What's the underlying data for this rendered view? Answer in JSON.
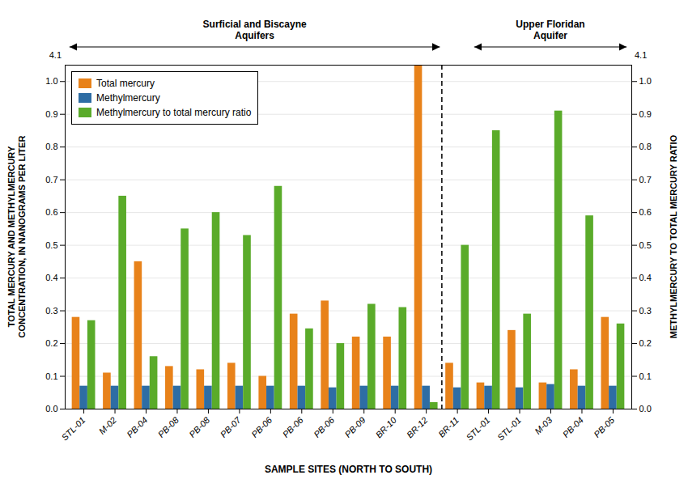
{
  "chart_data": {
    "type": "bar",
    "categories": [
      "STL-01",
      "M-02",
      "PB-04",
      "PB-08",
      "PB-08",
      "PB-07",
      "PB-06",
      "PB-06",
      "PB-06",
      "PB-09",
      "BR-10",
      "BR-12",
      "BR-11",
      "STL-01",
      "STL-01",
      "M-03",
      "PB-04",
      "PB-05"
    ],
    "series": [
      {
        "name": "Total mercury",
        "color": "#E8821A",
        "values": [
          0.28,
          0.11,
          0.45,
          0.13,
          0.12,
          0.14,
          0.1,
          0.29,
          0.33,
          0.22,
          0.22,
          1.05,
          0.14,
          0.08,
          0.24,
          0.08,
          0.12,
          0.28
        ]
      },
      {
        "name": "Methylmercury",
        "color": "#2E6DA4",
        "values": [
          0.07,
          0.07,
          0.07,
          0.07,
          0.07,
          0.07,
          0.07,
          0.07,
          0.065,
          0.07,
          0.07,
          0.07,
          0.065,
          0.07,
          0.065,
          0.075,
          0.07,
          0.07
        ]
      },
      {
        "name": "Methylmercury to total mercury ratio",
        "color": "#5AAB2A",
        "axis": "y2",
        "values": [
          0.27,
          0.65,
          0.16,
          0.55,
          0.6,
          0.53,
          0.68,
          0.245,
          0.2,
          0.32,
          0.31,
          0.02,
          0.5,
          0.85,
          0.29,
          0.91,
          0.59,
          0.26
        ]
      }
    ],
    "xlabel": "SAMPLE SITES (NORTH TO SOUTH)",
    "ylabel": "TOTAL MERCURY AND METHYLMERCURY\nCONCENTRATION, IN NANOGRAMS PER LITER",
    "y2label": "METHYLMERCURY TO TOTAL MERCURY RATIO",
    "ylim": [
      0.0,
      1.05
    ],
    "yticks": [
      {
        "value": 0,
        "label": "0.0"
      },
      0.1,
      0.2,
      0.3,
      0.4,
      0.5,
      0.6,
      0.7,
      0.8,
      0.9,
      {
        "value": 1,
        "label": "1.0"
      }
    ],
    "y2lim": [
      0.0,
      1.05
    ],
    "y2ticks": [
      {
        "value": 0,
        "label": "0.0"
      },
      0.1,
      0.2,
      0.3,
      0.4,
      0.5,
      0.6,
      0.7,
      0.8,
      0.9,
      {
        "value": 1,
        "label": "1.0"
      }
    ],
    "grid": true,
    "legend": "upper left",
    "annotations": [
      {
        "text": "Surficial and Biscayne\nAquifers",
        "x": [
          0,
          11
        ]
      },
      {
        "text": "Upper Floridan\nAquifer",
        "x": [
          13,
          17
        ]
      },
      {
        "type": "vline",
        "x": 11.5,
        "line_style": "dashed"
      },
      {
        "text": "4.1",
        "axis": "y"
      },
      {
        "text": "4.1",
        "axis": "y2"
      }
    ]
  }
}
